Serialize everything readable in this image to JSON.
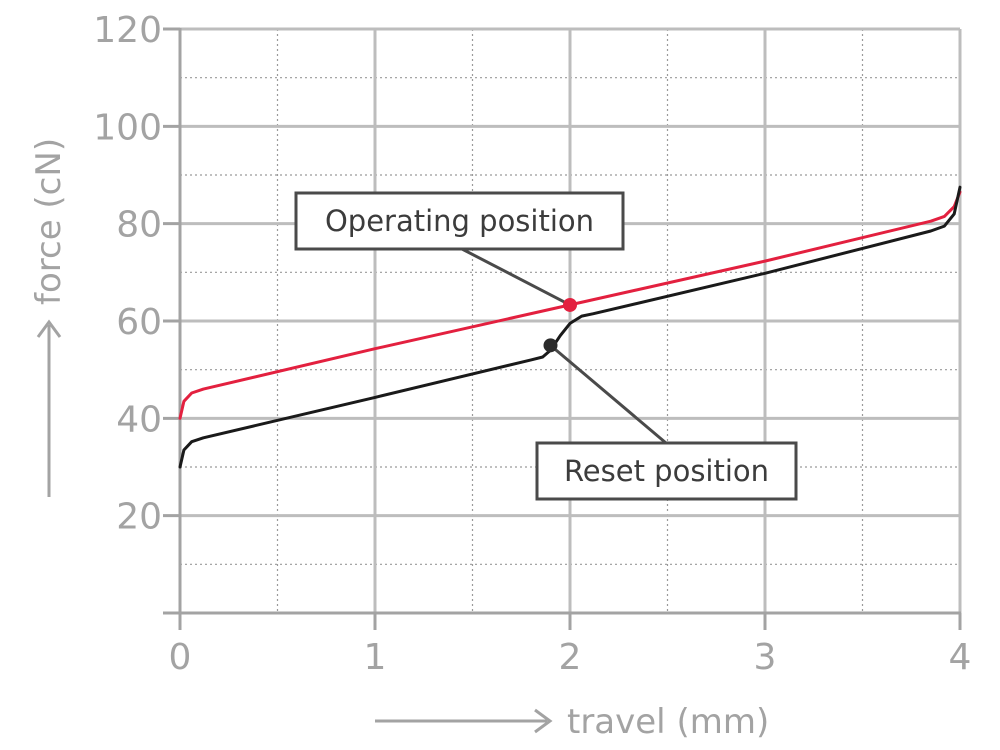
{
  "chart_data": {
    "type": "line",
    "xlabel": "travel (mm)",
    "ylabel": "force (cN)",
    "xlim": [
      0,
      4
    ],
    "ylim": [
      0,
      120
    ],
    "x_ticks": [
      "0",
      "1",
      "2",
      "3",
      "4"
    ],
    "y_ticks": [
      "20",
      "40",
      "60",
      "80",
      "100",
      "120"
    ],
    "grid": true,
    "series": [
      {
        "color": "#e3203f",
        "points": [
          [
            0,
            40
          ],
          [
            0.02,
            43.5
          ],
          [
            0.06,
            45.2
          ],
          [
            0.12,
            46
          ],
          [
            1,
            54.3
          ],
          [
            2,
            63.3
          ],
          [
            3,
            72.3
          ],
          [
            3.85,
            80.5
          ],
          [
            3.92,
            81.5
          ],
          [
            3.97,
            83.5
          ],
          [
            4,
            86.5
          ]
        ]
      },
      {
        "color": "#1a1a1a",
        "points": [
          [
            0,
            30
          ],
          [
            0.02,
            33.5
          ],
          [
            0.06,
            35.2
          ],
          [
            0.12,
            36
          ],
          [
            1,
            44.3
          ],
          [
            1.8,
            52
          ],
          [
            1.86,
            52.6
          ],
          [
            1.9,
            54
          ],
          [
            1.95,
            57
          ],
          [
            2,
            59.5
          ],
          [
            2.06,
            61
          ],
          [
            2.12,
            61.5
          ],
          [
            3,
            69.8
          ],
          [
            3.85,
            78.5
          ],
          [
            3.92,
            79.5
          ],
          [
            3.97,
            82
          ],
          [
            4,
            87.5
          ]
        ]
      }
    ],
    "markers": [
      {
        "name": "operating",
        "x": 2,
        "y": 63.3,
        "color": "#e3203f"
      },
      {
        "name": "reset",
        "x": 1.9,
        "y": 55,
        "color": "#2b2b2b"
      }
    ],
    "annotations": [
      {
        "text": "Operating position",
        "target": "operating"
      },
      {
        "text": "Reset position",
        "target": "reset"
      }
    ]
  }
}
